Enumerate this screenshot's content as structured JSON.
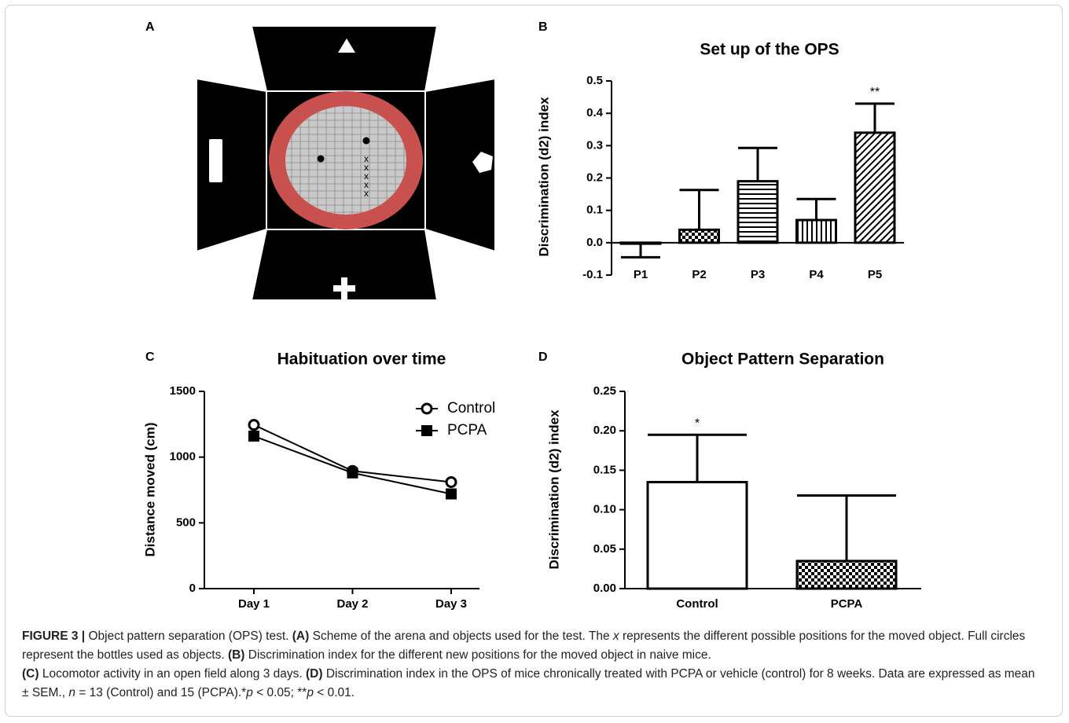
{
  "panel_labels": [
    "A",
    "B",
    "C",
    "D"
  ],
  "diagram": {
    "position_marks": [
      "x",
      "x",
      "x",
      "x",
      "x"
    ]
  },
  "chart_data": [
    {
      "type": "bar",
      "title": "Set up of the OPS",
      "y_label": "Discrimination (d2) index",
      "categories": [
        "P1",
        "P2",
        "P3",
        "P4",
        "P5"
      ],
      "values": [
        -0.003,
        0.04,
        0.19,
        0.07,
        0.34
      ],
      "errors": [
        0.042,
        0.123,
        0.103,
        0.065,
        0.09
      ],
      "value_annotations": [
        null,
        null,
        null,
        null,
        "**"
      ],
      "patterns": [
        "none",
        "checker",
        "horizontal",
        "vertical",
        "diagonal"
      ],
      "color": "#000000",
      "ylim": [
        -0.1,
        0.5
      ],
      "yticks": [
        -0.1,
        {
          "value": 0,
          "label": "0.0"
        },
        0.1,
        0.2,
        0.3,
        0.4,
        0.5
      ]
    },
    {
      "type": "line",
      "title": "Habituation over time",
      "y_label": "Distance moved (cm)",
      "categories": [
        "Day 1",
        "Day 2",
        "Day 3"
      ],
      "series": [
        {
          "name": "Control",
          "color": "#000000",
          "marker": "circle-open",
          "values": [
            1245,
            895,
            810
          ]
        },
        {
          "name": "PCPA",
          "color": "#000000",
          "marker": "square",
          "values": [
            1160,
            880,
            720
          ]
        }
      ],
      "ylim": [
        0,
        1500
      ],
      "yticks": [
        0,
        500,
        1000,
        1500
      ],
      "legend": "upper right"
    },
    {
      "type": "bar",
      "title": "Object Pattern Separation",
      "y_label": "Discrimination (d2) index",
      "categories": [
        "Control",
        "PCPA"
      ],
      "values": [
        0.135,
        0.035
      ],
      "errors": [
        0.06,
        0.083
      ],
      "value_annotations": [
        "*",
        null
      ],
      "patterns": [
        "none",
        "checker"
      ],
      "color": "#000000",
      "ylim": [
        0,
        0.25
      ],
      "yticks": [
        {
          "value": 0,
          "label": "0.00"
        },
        0.05,
        {
          "value": 0.1,
          "label": "0.10"
        },
        0.15,
        {
          "value": 0.2,
          "label": "0.20"
        },
        0.25
      ]
    }
  ],
  "caption": {
    "segments": [
      "FIGURE 3 |",
      " Object pattern separation (OPS) test. ",
      "(A)",
      " Scheme of the arena and objects used for the test. The ",
      "x",
      " represents the different possible positions for the moved object. Full circles represent the bottles used as objects. ",
      "(B)",
      " Discrimination index for the different new positions for the moved object in naive mice.",
      "(C)",
      " Locomotor activity in an open field along 3 days. ",
      "(D)",
      " Discrimination index in the OPS of mice chronically treated with PCPA or vehicle (control) for 8 weeks. Data are expressed as mean ± SEM., ",
      "n",
      " = 13 (Control) and 15 (PCPA).*",
      "p",
      " < 0.05; **",
      "p",
      " < 0.01."
    ]
  }
}
